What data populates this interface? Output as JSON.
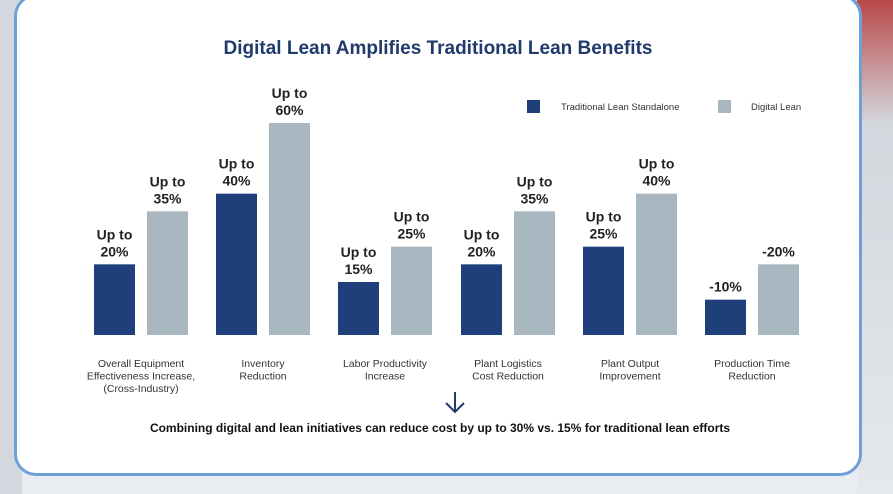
{
  "chart_data": {
    "type": "bar",
    "title": "Digital Lean Amplifies Traditional Lean Benefits",
    "categories": [
      [
        "Overall Equipment",
        "Effectiveness Increase,",
        "(Cross-Industry)"
      ],
      [
        "Inventory",
        "Reduction"
      ],
      [
        "Labor Productivity",
        "Increase"
      ],
      [
        "Plant Logistics",
        "Cost Reduction"
      ],
      [
        "Plant Output",
        "Improvement"
      ],
      [
        "Production Time",
        "Reduction"
      ]
    ],
    "series": [
      {
        "name": "Traditional Lean Standalone",
        "color": "#1f3f7a",
        "values": [
          20,
          40,
          15,
          20,
          25,
          10
        ],
        "labels": [
          [
            "Up to",
            "20%"
          ],
          [
            "Up to",
            "40%"
          ],
          [
            "Up to",
            "15%"
          ],
          [
            "Up to",
            "20%"
          ],
          [
            "Up to",
            "25%"
          ],
          [
            "-10%"
          ]
        ]
      },
      {
        "name": "Digital Lean",
        "color": "#a7b6bf",
        "values": [
          35,
          60,
          25,
          35,
          40,
          20
        ],
        "labels": [
          [
            "Up to",
            "35%"
          ],
          [
            "Up to",
            "60%"
          ],
          [
            "Up to",
            "25%"
          ],
          [
            "Up to",
            "35%"
          ],
          [
            "Up to",
            "40%"
          ],
          [
            "-20%"
          ]
        ]
      }
    ],
    "ylim": [
      0,
      60
    ],
    "legend": "top-right",
    "grid": false,
    "footnote": "Combining digital and lean initiatives can reduce cost by up to 30% vs. 15% for traditional lean efforts",
    "arrow_icon": "arrow-down-icon"
  }
}
